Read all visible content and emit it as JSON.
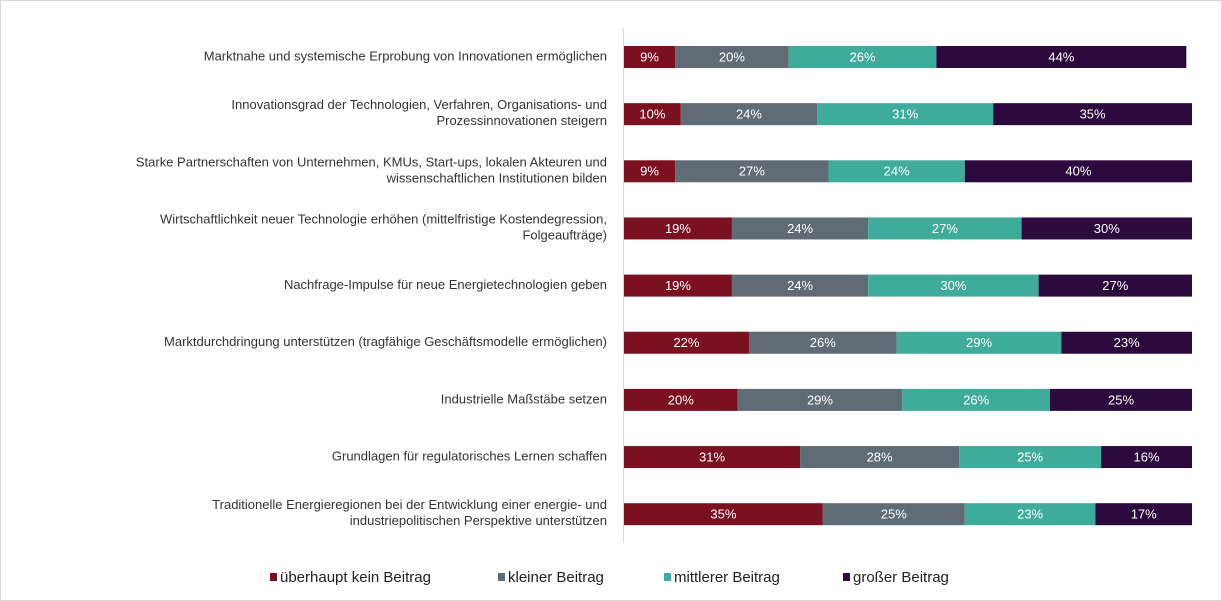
{
  "chart_data": {
    "type": "stacked_barh",
    "categories": [
      "Marktnahe und systemische Erprobung von Innovationen ermöglichen",
      "Innovationsgrad der Technologien, Verfahren, Organisations- und\nProzessinnovationen steigern",
      "Starke Partnerschaften von Unternehmen, KMUs, Start-ups, lokalen Akteuren und\nwissenschaftlichen Institutionen bilden",
      "Wirtschaftlichkeit neuer Technologie erhöhen (mittelfristige Kostendegression,\nFolgeaufträge)",
      "Nachfrage-Impulse für neue Energietechnologien geben",
      "Marktdurchdringung unterstützen (tragfähige Geschäftsmodelle ermöglichen)",
      "Industrielle Maßstäbe setzen",
      "Grundlagen für regulatorisches Lernen schaffen",
      "Traditionelle Energieregionen bei der Entwicklung einer energie- und\nindustriepolitischen Perspektive unterstützen"
    ],
    "series": [
      {
        "name": "überhaupt kein Beitrag",
        "color": "#7b1020",
        "values": [
          9,
          10,
          9,
          19,
          19,
          22,
          20,
          31,
          35
        ],
        "value_labels": [
          "9%",
          "10%",
          "9%",
          "19%",
          "19%",
          "22%",
          "20%",
          "31%",
          "35%"
        ]
      },
      {
        "name": "kleiner Beitrag",
        "color": "#5f6b75",
        "values": [
          20,
          24,
          27,
          24,
          24,
          26,
          29,
          28,
          25
        ],
        "value_labels": [
          "20%",
          "24%",
          "27%",
          "24%",
          "24%",
          "26%",
          "29%",
          "28%",
          "25%"
        ]
      },
      {
        "name": "mittlerer Beitrag",
        "color": "#3fab9a",
        "values": [
          26,
          31,
          24,
          27,
          30,
          29,
          26,
          25,
          23
        ],
        "value_labels": [
          "26%",
          "31%",
          "24%",
          "27%",
          "30%",
          "29%",
          "26%",
          "25%",
          "23%"
        ]
      },
      {
        "name": "großer Beitrag",
        "color": "#2c0a3d",
        "values": [
          44,
          35,
          40,
          30,
          27,
          23,
          25,
          16,
          17
        ],
        "value_labels": [
          "44%",
          "35%",
          "40%",
          "30%",
          "27%",
          "23%",
          "25%",
          "16%",
          "17%"
        ]
      }
    ],
    "xlim": [
      0,
      100
    ]
  }
}
